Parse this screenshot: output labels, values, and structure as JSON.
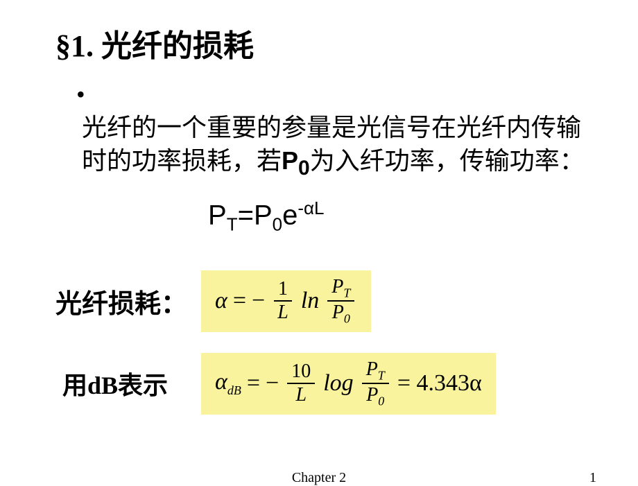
{
  "title": "§1. 光纤的损耗",
  "bullet": {
    "marker": "•",
    "part1": "光纤的一个重要的参量是光信号在光纤内传输时的功率损耗，若",
    "pvar": "P",
    "psub": "0",
    "part2": "为入纤功率，传输功率："
  },
  "eq1": {
    "lhs_base": "P",
    "lhs_sub": "T",
    "eq": "=",
    "p0_base": "P",
    "p0_sub": "0",
    "e": "e",
    "exp": "-αL"
  },
  "row_alpha": {
    "label": "光纤损耗：",
    "alpha": "α",
    "eq": " = ",
    "neg": "−",
    "frac1_num": "1",
    "frac1_den": "L",
    "ln": "ln",
    "frac2_num_base": "P",
    "frac2_num_sub": "T",
    "frac2_den_base": "P",
    "frac2_den_sub": "0"
  },
  "row_db": {
    "label": "用dB表示",
    "alpha": "α",
    "alpha_sub": "dB",
    "eq": " = ",
    "neg": "−",
    "frac1_num": "10",
    "frac1_den": "L",
    "log": "log",
    "frac2_num_base": "P",
    "frac2_num_sub": "T",
    "frac2_den_base": "P",
    "frac2_den_sub": "0",
    "tail": " = 4.343α"
  },
  "footer": {
    "center": "Chapter 2",
    "page": "1"
  },
  "colors": {
    "highlight": "#faf39d",
    "bg": "#ffffff",
    "text": "#000000"
  }
}
